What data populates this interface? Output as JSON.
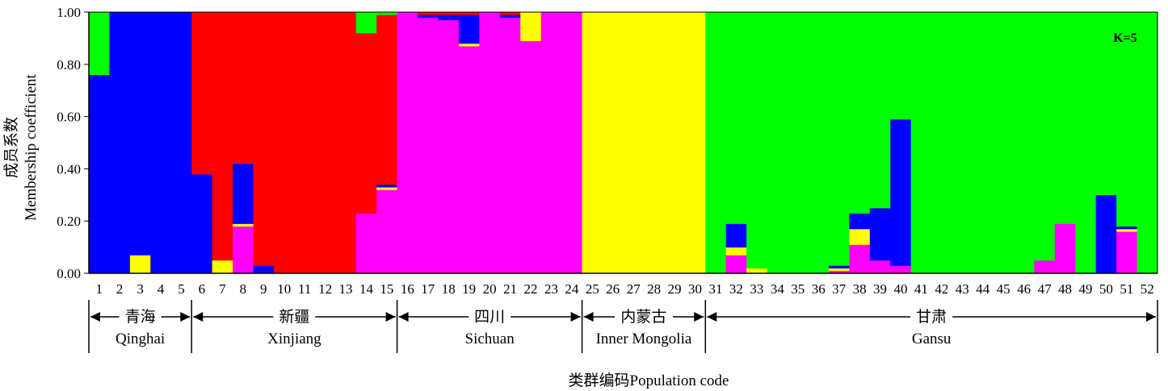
{
  "chart_data": {
    "type": "bar",
    "stacked": true,
    "title": "",
    "k_label": "K=5",
    "ylabel_cn": "成员系数",
    "ylabel_en": "Membership coefficient",
    "xlabel": "类群编码Population code",
    "ylim": [
      0,
      1
    ],
    "yticks": [
      "0.00",
      "0.20",
      "0.40",
      "0.60",
      "0.80",
      "1.00"
    ],
    "categories": [
      "1",
      "2",
      "3",
      "4",
      "5",
      "6",
      "7",
      "8",
      "9",
      "10",
      "11",
      "12",
      "13",
      "14",
      "15",
      "16",
      "17",
      "18",
      "19",
      "20",
      "21",
      "22",
      "23",
      "24",
      "25",
      "26",
      "27",
      "28",
      "29",
      "30",
      "31",
      "32",
      "33",
      "34",
      "35",
      "36",
      "37",
      "38",
      "39",
      "40",
      "41",
      "42",
      "43",
      "44",
      "45",
      "46",
      "47",
      "48",
      "49",
      "50",
      "51",
      "52"
    ],
    "colors": {
      "blue": "#0000ff",
      "red": "#ff0000",
      "magenta": "#ff00ff",
      "yellow": "#ffff00",
      "green": "#00ff00"
    },
    "series_order": [
      "magenta",
      "yellow",
      "blue",
      "red",
      "green"
    ],
    "series": [
      {
        "key": "magenta",
        "values": [
          0,
          0,
          0,
          0,
          0,
          0,
          0,
          0.18,
          0,
          0,
          0,
          0,
          0,
          0.23,
          0.32,
          1,
          0.98,
          0.97,
          0.87,
          1,
          0.98,
          0.89,
          1,
          1,
          0,
          0,
          0,
          0,
          0,
          0,
          0,
          0.07,
          0,
          0,
          0,
          0,
          0.01,
          0.11,
          0.05,
          0.03,
          0,
          0,
          0,
          0,
          0,
          0,
          0.05,
          0.19,
          0,
          0,
          0.16,
          0
        ]
      },
      {
        "key": "yellow",
        "values": [
          0,
          0,
          0.07,
          0,
          0,
          0,
          0.05,
          0.01,
          0,
          0,
          0,
          0,
          0,
          0,
          0.01,
          0,
          0,
          0,
          0.01,
          0,
          0,
          0.11,
          0,
          0,
          1,
          1,
          1,
          1,
          1,
          1,
          0,
          0.03,
          0.02,
          0,
          0,
          0,
          0.01,
          0.06,
          0,
          0,
          0,
          0,
          0,
          0,
          0,
          0,
          0,
          0,
          0,
          0,
          0.01,
          0
        ]
      },
      {
        "key": "blue",
        "values": [
          0.76,
          1,
          0.93,
          1,
          1,
          0.38,
          0,
          0.23,
          0.03,
          0,
          0,
          0,
          0,
          0,
          0.01,
          0,
          0.01,
          0.02,
          0.11,
          0,
          0.01,
          0,
          0,
          0,
          0,
          0,
          0,
          0,
          0,
          0,
          0,
          0.09,
          0,
          0,
          0,
          0,
          0.01,
          0.06,
          0.2,
          0.56,
          0,
          0,
          0,
          0,
          0,
          0,
          0,
          0,
          0,
          0.3,
          0.01,
          0
        ]
      },
      {
        "key": "red",
        "values": [
          0,
          0,
          0,
          0,
          0,
          0.62,
          0.95,
          0.58,
          0.97,
          1,
          1,
          1,
          1,
          0.69,
          0.65,
          0,
          0.01,
          0.01,
          0.01,
          0,
          0.01,
          0,
          0,
          0,
          0,
          0,
          0,
          0,
          0,
          0,
          0,
          0,
          0,
          0,
          0,
          0,
          0,
          0,
          0,
          0,
          0,
          0,
          0,
          0,
          0,
          0,
          0,
          0,
          0,
          0,
          0,
          0
        ]
      },
      {
        "key": "green",
        "values": [
          0.24,
          0,
          0,
          0,
          0,
          0,
          0,
          0,
          0,
          0,
          0,
          0,
          0,
          0.08,
          0.01,
          0,
          0,
          0,
          0,
          0,
          0,
          0,
          0,
          0,
          0,
          0,
          0,
          0,
          0,
          0,
          1,
          0.81,
          0.98,
          1,
          1,
          1,
          0.97,
          0.77,
          0.75,
          0.41,
          1,
          1,
          1,
          1,
          1,
          1,
          0.95,
          0.81,
          1,
          0.7,
          0.82,
          1
        ]
      }
    ],
    "regions": [
      {
        "cn": "青海",
        "en": "Qinghai",
        "from": 1,
        "to": 5
      },
      {
        "cn": "新疆",
        "en": "Xinjiang",
        "from": 6,
        "to": 15
      },
      {
        "cn": "四川",
        "en": "Sichuan",
        "from": 16,
        "to": 24
      },
      {
        "cn": "内蒙古",
        "en": "Inner Mongolia",
        "from": 25,
        "to": 30
      },
      {
        "cn": "甘肃",
        "en": "Gansu",
        "from": 31,
        "to": 52
      }
    ]
  }
}
